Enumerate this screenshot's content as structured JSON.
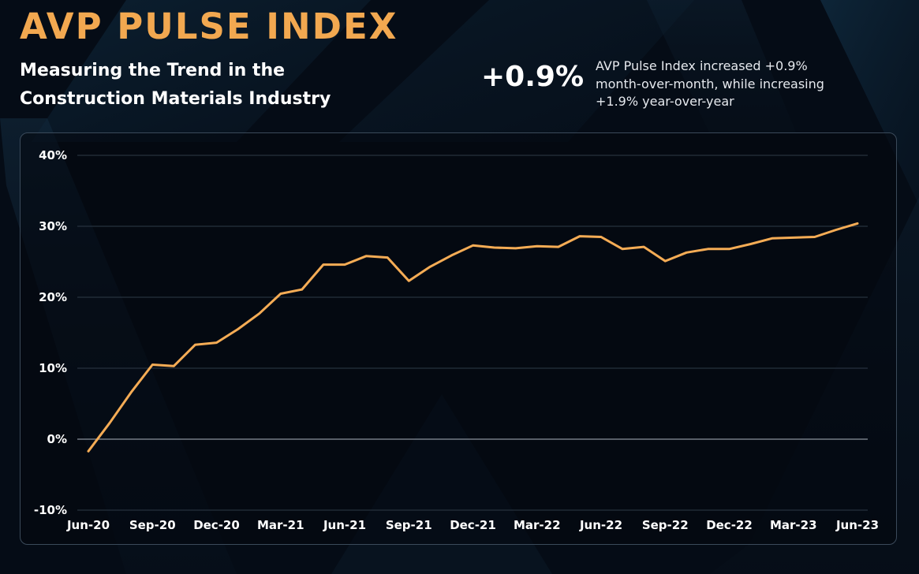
{
  "header": {
    "title": "AVP PULSE INDEX",
    "subtitle": "Measuring the Trend in the Construction Materials Industry",
    "mom_change": "+0.9%",
    "summary": "AVP Pulse Index increased +0.9% month-over-month, while increasing +1.9% year-over-year"
  },
  "colors": {
    "background": "#050c16",
    "title": "#f2a850",
    "line": "#f5ac55",
    "grid": "#2e3a47",
    "zero_line": "#8a929c",
    "panel_border": "#3b4a5a",
    "text": "#ffffff"
  },
  "chart_data": {
    "type": "line",
    "title": "",
    "xlabel": "",
    "ylabel": "",
    "ylim": [
      -10,
      40
    ],
    "y_ticks": [
      "40%",
      "30%",
      "20%",
      "10%",
      "0%",
      "-10%"
    ],
    "y_tick_values": [
      40,
      30,
      20,
      10,
      0,
      -10
    ],
    "x_ticks": [
      "Jun-20",
      "Sep-20",
      "Dec-20",
      "Mar-21",
      "Jun-21",
      "Sep-21",
      "Dec-21",
      "Mar-22",
      "Jun-22",
      "Sep-22",
      "Dec-22",
      "Mar-23",
      "Jun-23"
    ],
    "grid": true,
    "legend": "none",
    "series": [
      {
        "values": [
          -1.7,
          2.3,
          6.6,
          10.5,
          10.3,
          13.3,
          13.6,
          15.5,
          17.7,
          20.5,
          21.1,
          24.6,
          24.6,
          25.8,
          25.6,
          22.3,
          24.3,
          25.9,
          27.3,
          27.0,
          26.9,
          27.2,
          27.1,
          28.6,
          28.5,
          26.8,
          27.1,
          25.1,
          26.3,
          26.8,
          26.8,
          27.5,
          28.3,
          28.4,
          28.5,
          29.5,
          30.4
        ]
      }
    ]
  }
}
